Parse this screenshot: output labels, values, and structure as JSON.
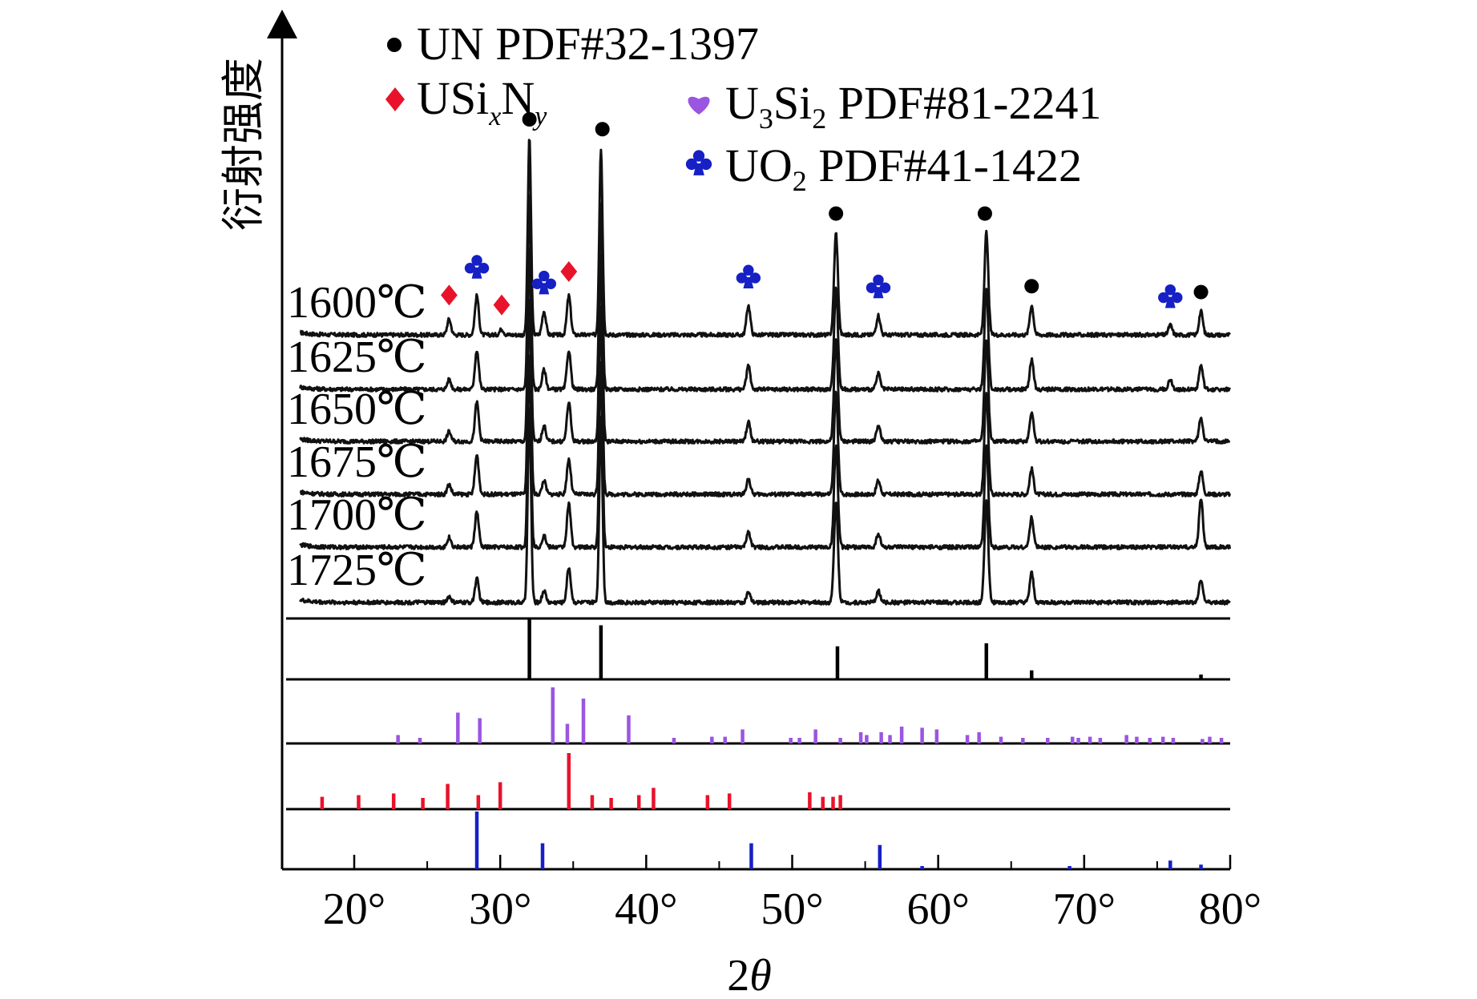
{
  "chart_data": {
    "type": "line",
    "xlabel": "2θ",
    "ylabel": "衍射强度",
    "xlim": [
      15,
      80
    ],
    "x_ticks": [
      {
        "value": 20,
        "label": "20°"
      },
      {
        "value": 30,
        "label": "30°"
      },
      {
        "value": 40,
        "label": "40°"
      },
      {
        "value": 50,
        "label": "50°"
      },
      {
        "value": 60,
        "label": "60°"
      },
      {
        "value": 70,
        "label": "70°"
      },
      {
        "value": 80,
        "label": "80°"
      }
    ],
    "legend": {
      "placement": "top",
      "entries": [
        {
          "label": "UN PDF#32-1397",
          "marker": "circle",
          "color": "#000000"
        },
        {
          "label": "USixNy",
          "marker": "diamond",
          "color": "#e8132b"
        },
        {
          "label": "U3Si2 PDF#81-2241",
          "marker": "heart",
          "color": "#9b55e0"
        },
        {
          "label": "UO2 PDF#41-1422",
          "marker": "club",
          "color": "#1620c4"
        }
      ]
    },
    "series": [
      {
        "name": "1600℃",
        "peaks": [
          [
            26.5,
            0.08
          ],
          [
            28.4,
            0.2
          ],
          [
            30.1,
            0.03
          ],
          [
            32.0,
            1.0
          ],
          [
            33.0,
            0.12
          ],
          [
            34.7,
            0.2
          ],
          [
            36.9,
            0.95
          ],
          [
            47.0,
            0.15
          ],
          [
            53.0,
            0.52
          ],
          [
            55.9,
            0.1
          ],
          [
            63.3,
            0.52
          ],
          [
            66.4,
            0.15
          ],
          [
            75.9,
            0.05
          ],
          [
            78.0,
            0.12
          ]
        ]
      },
      {
        "name": "1625℃",
        "peaks": [
          [
            26.5,
            0.05
          ],
          [
            28.4,
            0.2
          ],
          [
            32.0,
            1.0
          ],
          [
            33.0,
            0.1
          ],
          [
            34.7,
            0.2
          ],
          [
            36.9,
            0.95
          ],
          [
            47.0,
            0.12
          ],
          [
            53.0,
            0.52
          ],
          [
            55.9,
            0.08
          ],
          [
            63.3,
            0.52
          ],
          [
            66.4,
            0.15
          ],
          [
            75.9,
            0.05
          ],
          [
            78.0,
            0.12
          ]
        ]
      },
      {
        "name": "1650℃",
        "peaks": [
          [
            26.5,
            0.05
          ],
          [
            28.4,
            0.2
          ],
          [
            32.0,
            1.0
          ],
          [
            33.0,
            0.08
          ],
          [
            34.7,
            0.2
          ],
          [
            36.9,
            0.95
          ],
          [
            47.0,
            0.1
          ],
          [
            53.0,
            0.52
          ],
          [
            55.9,
            0.08
          ],
          [
            63.3,
            0.52
          ],
          [
            66.4,
            0.15
          ],
          [
            78.0,
            0.12
          ]
        ]
      },
      {
        "name": "1675℃",
        "peaks": [
          [
            26.5,
            0.05
          ],
          [
            28.4,
            0.2
          ],
          [
            32.0,
            1.0
          ],
          [
            33.0,
            0.07
          ],
          [
            34.7,
            0.18
          ],
          [
            36.9,
            0.95
          ],
          [
            47.0,
            0.08
          ],
          [
            53.0,
            0.52
          ],
          [
            55.9,
            0.07
          ],
          [
            63.3,
            0.52
          ],
          [
            66.4,
            0.13
          ],
          [
            78.0,
            0.12
          ]
        ]
      },
      {
        "name": "1700℃",
        "peaks": [
          [
            26.5,
            0.05
          ],
          [
            28.4,
            0.18
          ],
          [
            32.0,
            1.0
          ],
          [
            33.0,
            0.06
          ],
          [
            34.7,
            0.22
          ],
          [
            36.9,
            0.95
          ],
          [
            47.0,
            0.08
          ],
          [
            53.0,
            0.52
          ],
          [
            55.9,
            0.07
          ],
          [
            63.3,
            0.52
          ],
          [
            66.4,
            0.15
          ],
          [
            78.0,
            0.25
          ]
        ]
      },
      {
        "name": "1725℃",
        "peaks": [
          [
            26.5,
            0.03
          ],
          [
            28.4,
            0.12
          ],
          [
            32.0,
            1.0
          ],
          [
            33.0,
            0.06
          ],
          [
            34.7,
            0.18
          ],
          [
            36.9,
            0.95
          ],
          [
            47.0,
            0.05
          ],
          [
            53.0,
            0.52
          ],
          [
            55.9,
            0.06
          ],
          [
            63.3,
            0.52
          ],
          [
            66.4,
            0.15
          ],
          [
            78.0,
            0.12
          ]
        ]
      }
    ],
    "reference_patterns": [
      {
        "name": "UN PDF#32-1397",
        "color": "#000000",
        "sticks": [
          [
            32.0,
            1.0
          ],
          [
            36.9,
            0.9
          ],
          [
            53.1,
            0.55
          ],
          [
            63.3,
            0.6
          ],
          [
            66.4,
            0.15
          ],
          [
            78.0,
            0.08
          ]
        ]
      },
      {
        "name": "U3Si2 PDF#81-2241",
        "color": "#9b55e0",
        "sticks": [
          [
            23.0,
            0.15
          ],
          [
            24.5,
            0.1
          ],
          [
            27.1,
            0.55
          ],
          [
            28.6,
            0.45
          ],
          [
            33.6,
            1.0
          ],
          [
            34.6,
            0.35
          ],
          [
            35.7,
            0.8
          ],
          [
            38.8,
            0.5
          ],
          [
            41.9,
            0.1
          ],
          [
            44.5,
            0.12
          ],
          [
            45.4,
            0.12
          ],
          [
            46.6,
            0.25
          ],
          [
            49.9,
            0.1
          ],
          [
            50.5,
            0.1
          ],
          [
            51.6,
            0.25
          ],
          [
            53.3,
            0.1
          ],
          [
            54.7,
            0.2
          ],
          [
            55.1,
            0.15
          ],
          [
            56.1,
            0.2
          ],
          [
            56.7,
            0.15
          ],
          [
            57.5,
            0.3
          ],
          [
            58.9,
            0.28
          ],
          [
            59.9,
            0.25
          ],
          [
            62.0,
            0.15
          ],
          [
            62.8,
            0.2
          ],
          [
            64.3,
            0.12
          ],
          [
            65.8,
            0.1
          ],
          [
            67.5,
            0.1
          ],
          [
            69.2,
            0.12
          ],
          [
            69.6,
            0.1
          ],
          [
            70.4,
            0.12
          ],
          [
            71.1,
            0.1
          ],
          [
            72.9,
            0.15
          ],
          [
            73.6,
            0.12
          ],
          [
            74.5,
            0.1
          ],
          [
            75.4,
            0.12
          ],
          [
            76.1,
            0.1
          ],
          [
            78.1,
            0.08
          ],
          [
            78.6,
            0.12
          ],
          [
            79.4,
            0.1
          ]
        ]
      },
      {
        "name": "USixNy",
        "color": "#e8132b",
        "sticks": [
          [
            17.8,
            0.22
          ],
          [
            20.3,
            0.25
          ],
          [
            22.7,
            0.28
          ],
          [
            24.7,
            0.2
          ],
          [
            26.4,
            0.45
          ],
          [
            28.5,
            0.25
          ],
          [
            30.0,
            0.48
          ],
          [
            34.7,
            1.0
          ],
          [
            36.3,
            0.25
          ],
          [
            37.6,
            0.2
          ],
          [
            39.5,
            0.25
          ],
          [
            40.5,
            0.38
          ],
          [
            44.2,
            0.25
          ],
          [
            45.7,
            0.28
          ],
          [
            51.2,
            0.3
          ],
          [
            52.1,
            0.22
          ],
          [
            52.8,
            0.22
          ],
          [
            53.3,
            0.25
          ]
        ]
      },
      {
        "name": "UO2 PDF#41-1422",
        "color": "#1620c4",
        "sticks": [
          [
            28.4,
            1.0
          ],
          [
            32.9,
            0.45
          ],
          [
            47.2,
            0.45
          ],
          [
            56.0,
            0.42
          ],
          [
            58.9,
            0.05
          ],
          [
            69.0,
            0.05
          ],
          [
            75.9,
            0.15
          ],
          [
            78.0,
            0.08
          ]
        ]
      }
    ],
    "peak_markers": [
      {
        "type": "circle",
        "x": 32.0
      },
      {
        "type": "circle",
        "x": 37.0
      },
      {
        "type": "circle",
        "x": 53.0
      },
      {
        "type": "circle",
        "x": 63.2
      },
      {
        "type": "circle",
        "x": 66.4
      },
      {
        "type": "circle",
        "x": 78.0
      },
      {
        "type": "diamond",
        "x": 26.5
      },
      {
        "type": "diamond",
        "x": 30.1
      },
      {
        "type": "diamond",
        "x": 34.7
      },
      {
        "type": "club",
        "x": 28.4
      },
      {
        "type": "club",
        "x": 33.0
      },
      {
        "type": "club",
        "x": 47.0
      },
      {
        "type": "club",
        "x": 55.9
      },
      {
        "type": "club",
        "x": 75.9
      }
    ]
  }
}
